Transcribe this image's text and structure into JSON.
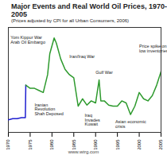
{
  "chart_data": {
    "type": "line",
    "title": "Major Events and Real World Oil Prices, 1970-2005",
    "subtitle": "(Prices adjusted by CPI for all Urban Consumers, 2006)",
    "caption": "www.wtrg.com",
    "xlim": [
      1970,
      2005
    ],
    "xticks": [
      1970,
      1975,
      1980,
      1985,
      1990,
      1995,
      2000,
      2005
    ],
    "ylim": [
      0,
      100
    ],
    "tick_labels": "x",
    "series": [
      {
        "color": "#1f1fd0",
        "x": [
          1970,
          1971,
          1972,
          1973,
          1973.9,
          1974
        ],
        "values": [
          12,
          13,
          13,
          14,
          14,
          45
        ]
      },
      {
        "color": "#2e9a2e",
        "x": [
          1974,
          1975,
          1976,
          1977,
          1978,
          1979,
          1979.5,
          1980.5,
          1981,
          1982,
          1983,
          1984,
          1985,
          1986,
          1987,
          1988,
          1989,
          1990,
          1990.8,
          1991.2,
          1992,
          1993,
          1994,
          1995,
          1996,
          1997,
          1998,
          1999,
          2000,
          2001,
          2002,
          2003,
          2004,
          2005
        ],
        "values": [
          45,
          42,
          42,
          40,
          38,
          55,
          75,
          90,
          85,
          70,
          60,
          55,
          52,
          25,
          32,
          26,
          30,
          28,
          50,
          30,
          30,
          26,
          25,
          25,
          30,
          28,
          17,
          25,
          38,
          32,
          30,
          35,
          45,
          58
        ]
      }
    ],
    "annotations": [
      {
        "text": "Yom Kippur War\nArab Oil Embargo",
        "x": 1970.5,
        "y": 88
      },
      {
        "text": "Iranian\nRevolution\nShah Deposed",
        "x": 1976,
        "y": 22
      },
      {
        "text": "Iran/Iraq War",
        "x": 1984,
        "y": 72
      },
      {
        "text": "Gulf War",
        "x": 1990,
        "y": 57
      },
      {
        "text": "Iraq\nInvades\nKuwait",
        "x": 1987.5,
        "y": 12
      },
      {
        "text": "Asian economic\ncrisis",
        "x": 1994.5,
        "y": 8
      },
      {
        "text": "Price spike on\nlow inventories",
        "x": 2000,
        "y": 80
      }
    ]
  }
}
